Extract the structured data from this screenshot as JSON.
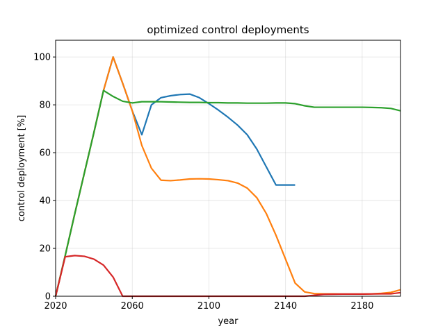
{
  "chart_data": {
    "type": "line",
    "title": "optimized control deployments",
    "xlabel": "year",
    "ylabel": "control deployment [%]",
    "xlim": [
      2020,
      2200
    ],
    "ylim": [
      0,
      107
    ],
    "xticks": [
      2020,
      2060,
      2100,
      2140,
      2180
    ],
    "yticks": [
      0,
      20,
      40,
      60,
      80,
      100
    ],
    "grid": true,
    "legend": "none",
    "series": [
      {
        "color": "#1f77b4",
        "x": [
          2020,
          2025,
          2030,
          2035,
          2040,
          2045,
          2050,
          2055,
          2060,
          2065,
          2070,
          2075,
          2080,
          2085,
          2090,
          2095,
          2100,
          2105,
          2110,
          2115,
          2120,
          2125,
          2130,
          2135,
          2140,
          2145
        ],
        "y": [
          0,
          17,
          34.5,
          51.5,
          68.5,
          86,
          100,
          89,
          77.5,
          67.5,
          80,
          83,
          83.8,
          84.3,
          84.5,
          83,
          80.5,
          77.8,
          74.8,
          71.5,
          67.5,
          61.5,
          54,
          46.5,
          46.5,
          46.5
        ]
      },
      {
        "color": "#ff7f0e",
        "x": [
          2020,
          2025,
          2030,
          2035,
          2040,
          2045,
          2050,
          2055,
          2060,
          2065,
          2070,
          2075,
          2080,
          2085,
          2090,
          2095,
          2100,
          2105,
          2110,
          2115,
          2120,
          2125,
          2130,
          2135,
          2140,
          2145,
          2150,
          2155,
          2160,
          2165,
          2170,
          2175,
          2180,
          2185,
          2190,
          2195,
          2200
        ],
        "y": [
          0,
          17,
          34.5,
          51.5,
          68.5,
          86,
          100,
          89,
          77.5,
          63,
          53.5,
          48.5,
          48.3,
          48.6,
          49,
          49.1,
          49,
          48.7,
          48.3,
          47.3,
          45.2,
          41.2,
          34.5,
          25.5,
          15.5,
          5.5,
          1.8,
          1.1,
          1.0,
          1.0,
          0.9,
          0.9,
          0.9,
          1.0,
          1.2,
          1.6,
          2.7
        ]
      },
      {
        "color": "#2ca02c",
        "x": [
          2020,
          2025,
          2030,
          2035,
          2040,
          2045,
          2050,
          2055,
          2060,
          2065,
          2070,
          2075,
          2080,
          2085,
          2090,
          2095,
          2100,
          2105,
          2110,
          2115,
          2120,
          2125,
          2130,
          2135,
          2140,
          2145,
          2150,
          2155,
          2160,
          2165,
          2170,
          2175,
          2180,
          2185,
          2190,
          2195,
          2200
        ],
        "y": [
          0,
          17,
          34.5,
          51.5,
          68.5,
          86,
          83.5,
          81.5,
          80.8,
          81.3,
          81.3,
          81.3,
          81.2,
          81.1,
          81.0,
          81.0,
          80.9,
          80.9,
          80.8,
          80.8,
          80.7,
          80.7,
          80.7,
          80.8,
          80.8,
          80.5,
          79.6,
          79.0,
          79.0,
          79.0,
          79.0,
          79.0,
          79.0,
          78.9,
          78.8,
          78.5,
          77.5
        ]
      },
      {
        "color": "#d62728",
        "x": [
          2020,
          2025,
          2030,
          2035,
          2040,
          2045,
          2050,
          2055,
          2060,
          2065,
          2070,
          2075,
          2080,
          2090,
          2100,
          2110,
          2120,
          2130,
          2140,
          2150,
          2155,
          2160,
          2170,
          2180,
          2190,
          2195,
          2200
        ],
        "y": [
          0,
          16.5,
          17.0,
          16.7,
          15.5,
          13,
          8,
          0,
          0,
          0,
          0,
          0,
          0,
          0,
          0,
          0,
          0,
          0,
          0,
          0,
          0.4,
          0.8,
          0.9,
          0.9,
          1.0,
          1.0,
          1.5
        ]
      }
    ]
  }
}
